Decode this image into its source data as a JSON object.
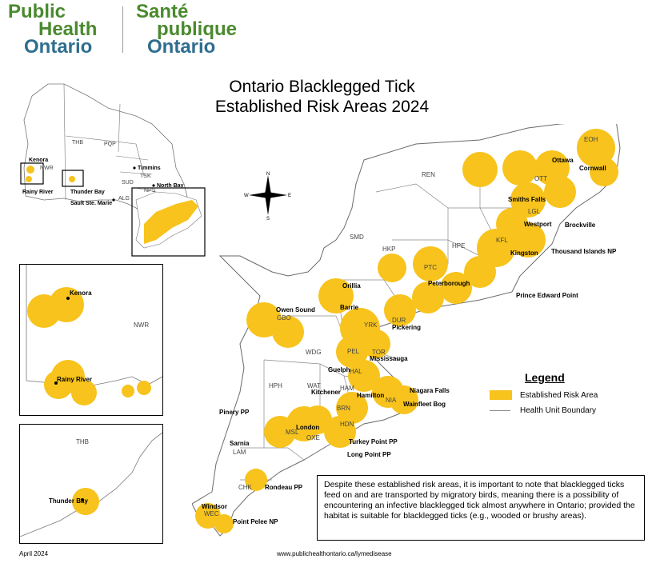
{
  "logo": {
    "en_line1": "Public",
    "en_line2": "Health",
    "en_line3": "Ontario",
    "fr_line1": "Santé",
    "fr_line2": "publique",
    "fr_line3": "Ontario"
  },
  "title": {
    "line1": "Ontario Blacklegged Tick",
    "line2": "Established Risk Areas 2024"
  },
  "colors": {
    "risk_area": "#f7c31c",
    "boundary": "#888888",
    "logo_green": "#4a8a2e",
    "logo_blue": "#2f6e8f"
  },
  "compass": {
    "n": "N",
    "s": "S",
    "e": "E",
    "w": "W"
  },
  "legend": {
    "title": "Legend",
    "risk_label": "Established Risk Area",
    "boundary_label": "Health Unit Boundary"
  },
  "note": "Despite these established risk areas, it is important to note that blacklegged ticks feed on and are transported by migratory birds, meaning there is a possibility of encountering an infective blacklegged tick almost anywhere in Ontario; provided the habitat is suitable for blacklegged ticks (e.g., wooded or brushy areas).",
  "footer": {
    "date": "April 2024",
    "url": "www.publichealthontario.ca/lymedisease"
  },
  "overview_map": {
    "health_units": [
      "NWR",
      "THB",
      "PQP",
      "TSK",
      "SUD",
      "ALG",
      "NPS"
    ],
    "cities": [
      "Kenora",
      "Rainy River",
      "Thunder Bay",
      "Timmins",
      "North Bay",
      "Sault Ste. Marie"
    ]
  },
  "inset_nwr": {
    "health_unit": "NWR",
    "cities": [
      "Kenora",
      "Rainy River"
    ]
  },
  "inset_thb": {
    "health_unit": "THB",
    "cities": [
      "Thunder Bay"
    ]
  },
  "main_map": {
    "health_units": [
      "REN",
      "EOH",
      "OTT",
      "LGL",
      "KFL",
      "HPE",
      "HKP",
      "PTC",
      "SMD",
      "GBO",
      "YRK",
      "DUR",
      "TOR",
      "PEL",
      "HAL",
      "WDG",
      "WAT",
      "HAM",
      "NIA",
      "BRN",
      "HDN",
      "HPH",
      "MSL",
      "OXE",
      "LAM",
      "CHK",
      "WEC"
    ],
    "cities": [
      "Ottawa",
      "Cornwall",
      "Smiths Falls",
      "Westport",
      "Brockville",
      "Kingston",
      "Thousand Islands NP",
      "Peterborough",
      "Prince Edward Point",
      "Orillia",
      "Barrie",
      "Owen Sound",
      "Pickering",
      "Mississauga",
      "Guelph",
      "Kitchener",
      "Hamilton",
      "Niagara Falls",
      "Wainfleet Bog",
      "Pinery PP",
      "London",
      "Sarnia",
      "Turkey Point PP",
      "Long Point PP",
      "Rondeau PP",
      "Windsor",
      "Point Pelee NP"
    ]
  }
}
